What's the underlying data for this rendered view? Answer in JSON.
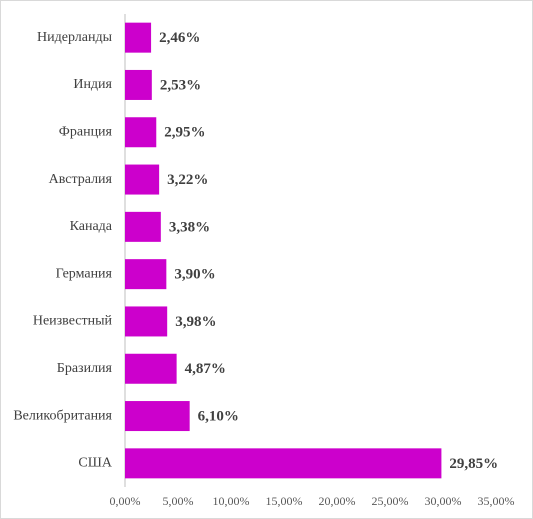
{
  "chart_data": {
    "type": "barh",
    "categories": [
      "Нидерланды",
      "Индия",
      "Франция",
      "Австралия",
      "Канада",
      "Германия",
      "Неизвестный",
      "Бразилия",
      "Великобритания",
      "США"
    ],
    "values": [
      2.46,
      2.53,
      2.95,
      3.22,
      3.38,
      3.9,
      3.98,
      4.87,
      6.1,
      29.85
    ],
    "value_labels": [
      "2,46%",
      "2,53%",
      "2,95%",
      "3,22%",
      "3,38%",
      "3,90%",
      "3,98%",
      "4,87%",
      "6,10%",
      "29,85%"
    ],
    "color": "#cc00cc",
    "xlim": [
      0,
      35
    ],
    "xticks": [
      {
        "value": 0,
        "label": "0,00%"
      },
      {
        "value": 5,
        "label": "5,00%"
      },
      {
        "value": 10,
        "label": "10,00%"
      },
      {
        "value": 15,
        "label": "15,00%"
      },
      {
        "value": 20,
        "label": "20,00%"
      },
      {
        "value": 25,
        "label": "25,00%"
      },
      {
        "value": 30,
        "label": "30,00%"
      },
      {
        "value": 35,
        "label": "35,00%"
      }
    ],
    "grid": false
  }
}
